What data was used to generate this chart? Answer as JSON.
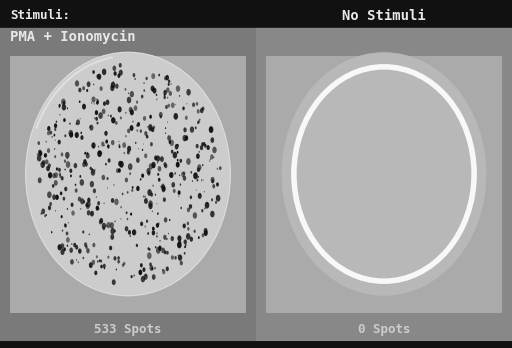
{
  "fig_width": 5.12,
  "fig_height": 3.48,
  "bg_color": "#111111",
  "left_panel": {
    "title_line1": "Stimuli:",
    "title_line2": "PMA + Ionomycin",
    "subtitle": "533 Spots",
    "outer_bg": "#7a7a7a",
    "inner_bg": "#aaaaaa",
    "well_fill": "#cccccc",
    "well_edge": "#dddddd",
    "num_spots": 533,
    "spot_color": "#111111",
    "spot_size_min": 0.003,
    "spot_size_max": 0.018
  },
  "right_panel": {
    "title": "No Stimuli",
    "subtitle": "0 Spots",
    "outer_bg": "#888888",
    "inner_bg": "#aaaaaa",
    "well_fill": "#b8b8b8",
    "ring_color": "#f8f8f8",
    "ring_linewidth": 4.0,
    "num_spots": 0
  },
  "title_color": "#e8e8e8",
  "subtitle_color": "#cccccc",
  "title_fontsize": 9,
  "subtitle_fontsize": 9
}
